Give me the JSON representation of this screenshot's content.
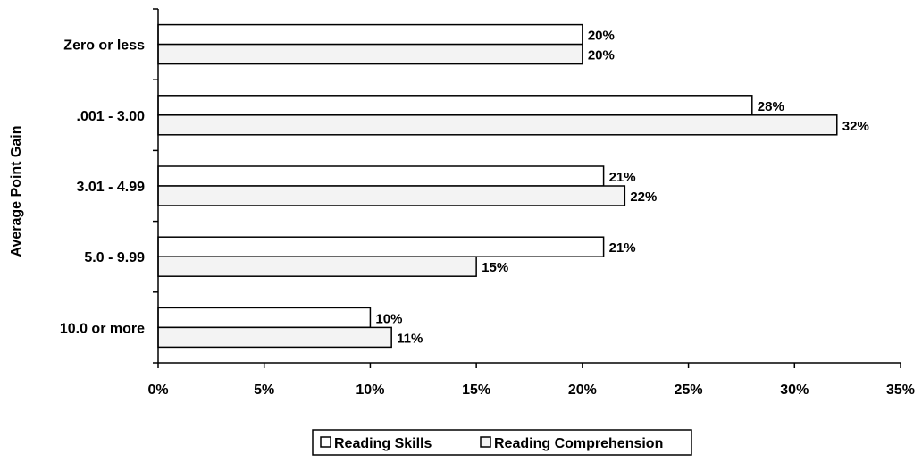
{
  "chart_data": {
    "type": "bar",
    "orientation": "horizontal",
    "title": "",
    "xlabel": "",
    "ylabel": "Average Point Gain",
    "categories": [
      "Zero or less",
      ".001 - 3.00",
      "3.01 - 4.99",
      "5.0 - 9.99",
      "10.0 or more"
    ],
    "series": [
      {
        "name": "Reading Skills",
        "values": [
          20,
          28,
          21,
          21,
          10
        ],
        "labels": [
          "20%",
          "28%",
          "21%",
          "21%",
          "10%"
        ],
        "fill": "#ffffff"
      },
      {
        "name": "Reading Comprehension",
        "values": [
          20,
          32,
          22,
          15,
          11
        ],
        "labels": [
          "20%",
          "32%",
          "22%",
          "15%",
          "11%"
        ],
        "fill": "#f3f3f3"
      }
    ],
    "xlim": [
      0,
      35
    ],
    "x_ticks": [
      0,
      5,
      10,
      15,
      20,
      25,
      30,
      35
    ],
    "x_tick_labels": [
      "0%",
      "5%",
      "10%",
      "15%",
      "20%",
      "25%",
      "30%",
      "35%"
    ],
    "grid": false,
    "legend_position": "bottom-center"
  }
}
